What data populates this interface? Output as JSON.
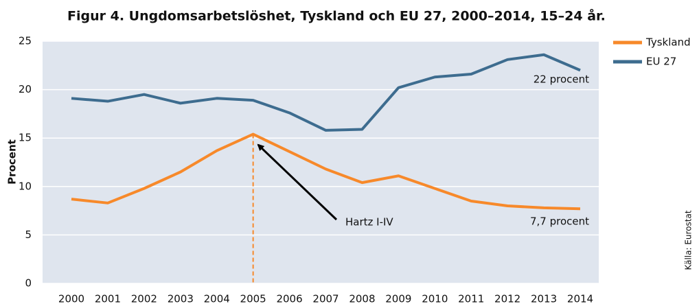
{
  "chart_data": {
    "type": "line",
    "title": "Figur 4. Ungdomsarbetslöshet, Tyskland och EU 27, 2000–2014, 15–24 år.",
    "y_label": "Procent",
    "source": "Källa: Eurostat",
    "annotations": [
      "Hartz I-IV",
      "22 procent",
      "7,7 procent"
    ],
    "categories": [
      "2000",
      "2001",
      "2002",
      "2003",
      "2004",
      "2005",
      "2006",
      "2007",
      "2008",
      "2009",
      "2010",
      "2011",
      "2012",
      "2013",
      "2014"
    ],
    "series": [
      {
        "name": "Tyskland",
        "color": "#f7892a",
        "values": [
          8.7,
          8.3,
          9.8,
          11.5,
          13.7,
          15.4,
          13.6,
          11.8,
          10.4,
          11.1,
          9.8,
          8.5,
          8.0,
          7.8,
          7.7
        ]
      },
      {
        "name": "EU 27",
        "color": "#3d6c8f",
        "values": [
          19.1,
          18.8,
          19.5,
          18.6,
          19.1,
          18.9,
          17.6,
          15.8,
          15.9,
          20.2,
          21.3,
          21.6,
          23.1,
          23.6,
          22.0
        ]
      }
    ],
    "ylim": [
      0,
      25
    ],
    "yticks": [
      0,
      5,
      10,
      15,
      20,
      25
    ],
    "grid": true,
    "legend": "top-right"
  }
}
